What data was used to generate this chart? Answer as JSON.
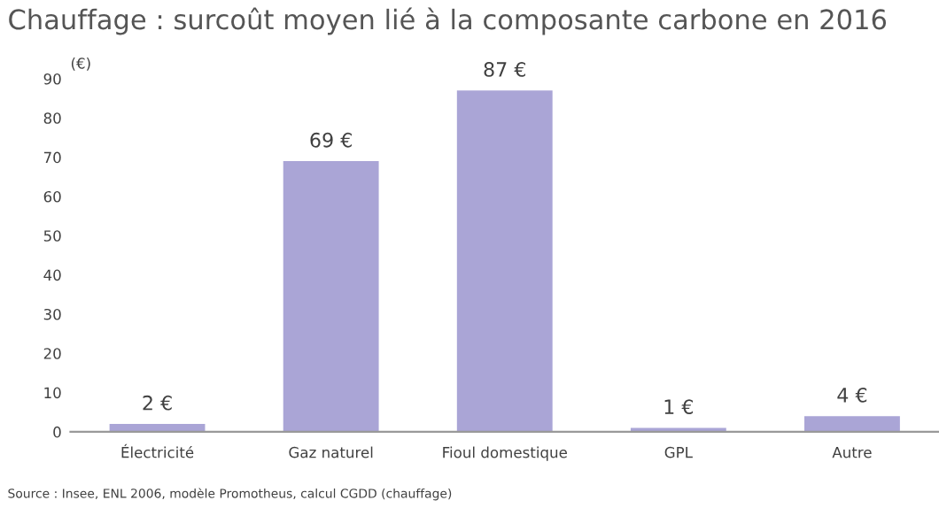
{
  "chart_data": {
    "type": "bar",
    "title": "Chauffage : surcoût moyen lié à la composante carbone en 2016",
    "ylabel": "(€)",
    "categories": [
      "Électricité",
      "Gaz naturel",
      "Fioul domestique",
      "GPL",
      "Autre"
    ],
    "values": [
      2,
      69,
      87,
      1,
      4
    ],
    "value_labels": [
      "2 €",
      "69 €",
      "87 €",
      "1 €",
      "4 €"
    ],
    "color": "#aaa5d6",
    "ylim": [
      0,
      90
    ],
    "yticks": [
      0,
      10,
      20,
      30,
      40,
      50,
      60,
      70,
      80,
      90
    ],
    "annotations": [
      "Source : Insee, ENL 2006, modèle Promotheus, calcul CGDD (chauffage)"
    ]
  }
}
